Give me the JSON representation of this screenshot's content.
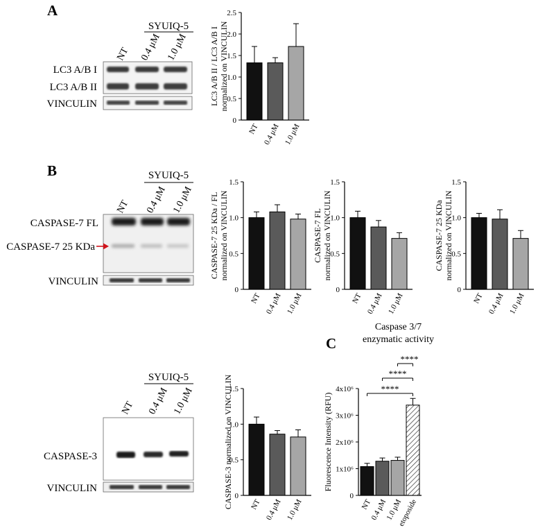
{
  "panels": {
    "A": "A",
    "B": "B",
    "C": "C"
  },
  "treatment_header": "SYUIQ-5",
  "lane_labels": [
    "NT",
    "0.4 μM",
    "1.0 μM"
  ],
  "blots": {
    "lc3": {
      "rows": [
        "LC3 A/B I",
        "LC3 A/B II"
      ],
      "loading": "VINCULIN"
    },
    "caspase7": {
      "rows": [
        "CASPASE-7 FL",
        "CASPASE-7 25 KDa"
      ],
      "loading": "VINCULIN"
    },
    "caspase3": {
      "rows": [
        "CASPASE-3"
      ],
      "loading": "VINCULIN"
    }
  },
  "colors": {
    "NT": "#111111",
    "0.4 μM": "#5a5a5a",
    "1.0 μM": "#a6a6a6",
    "etoposide": "#ffffff",
    "arrow": "#d0141c"
  },
  "chart_data": [
    {
      "id": "lc3-ratio",
      "type": "bar",
      "ylabel_lines": [
        "LC3 A/B II / LC3 A/B I",
        "normalized on VINCULIN"
      ],
      "categories": [
        "NT",
        "0.4 μM",
        "1.0 μM"
      ],
      "values": [
        1.33,
        1.33,
        1.71
      ],
      "errors": [
        0.38,
        0.12,
        0.53
      ],
      "ylim": [
        0,
        2.5
      ],
      "yticks": [
        "0",
        "0.5",
        "1.0",
        "1.5",
        "2.0",
        "2.5"
      ]
    },
    {
      "id": "casp7-25-fl",
      "type": "bar",
      "ylabel_lines": [
        "CASPASE-7 25 KDa / FL",
        "normalized on VINCULIN"
      ],
      "categories": [
        "NT",
        "0.4 μM",
        "1.0 μM"
      ],
      "values": [
        1.0,
        1.08,
        0.98
      ],
      "errors": [
        0.08,
        0.1,
        0.07
      ],
      "ylim": [
        0,
        1.5
      ],
      "yticks": [
        "0",
        "0.5",
        "1.0",
        "1.5"
      ]
    },
    {
      "id": "casp7-fl",
      "type": "bar",
      "ylabel_lines": [
        "CASPASE-7 FL",
        "normalized on VINCULIN"
      ],
      "categories": [
        "NT",
        "0.4 μM",
        "1.0 μM"
      ],
      "values": [
        1.0,
        0.87,
        0.71
      ],
      "errors": [
        0.09,
        0.09,
        0.08
      ],
      "ylim": [
        0,
        1.5
      ],
      "yticks": [
        "0",
        "0.5",
        "1.0",
        "1.5"
      ]
    },
    {
      "id": "casp7-25",
      "type": "bar",
      "ylabel_lines": [
        "CASPASE-7 25 KDa",
        "normalized on VINCULIN"
      ],
      "categories": [
        "NT",
        "0.4 μM",
        "1.0 μM"
      ],
      "values": [
        1.0,
        0.98,
        0.71
      ],
      "errors": [
        0.06,
        0.13,
        0.11
      ],
      "ylim": [
        0,
        1.5
      ],
      "yticks": [
        "0",
        "0.5",
        "1.0",
        "1.5"
      ]
    },
    {
      "id": "casp3",
      "type": "bar",
      "ylabel_lines": [
        "CASPASE-3 normalized on VINCULIN"
      ],
      "categories": [
        "NT",
        "0.4 μM",
        "1.0 μM"
      ],
      "values": [
        1.0,
        0.86,
        0.82
      ],
      "errors": [
        0.1,
        0.05,
        0.1
      ],
      "ylim": [
        0,
        1.5
      ],
      "yticks": [
        "0",
        "0.5",
        "1.0",
        "1.5"
      ]
    },
    {
      "id": "caspase-activity",
      "type": "bar",
      "title_lines": [
        "Caspase 3/7",
        "enzymatic activity"
      ],
      "ylabel_lines": [
        "Fluorescence Intensity (RFU)"
      ],
      "categories": [
        "NT",
        "0.4 μM",
        "1.0 μM",
        "etoposide"
      ],
      "values": [
        1080000,
        1280000,
        1310000,
        3380000
      ],
      "errors": [
        120000,
        120000,
        120000,
        250000
      ],
      "ylim": [
        0,
        4000000
      ],
      "yticks": [
        "0",
        "1x10⁶",
        "2x10⁶",
        "3x10⁶",
        "4x10⁶"
      ],
      "significance": [
        {
          "from": "NT",
          "to": "etoposide",
          "label": "****"
        },
        {
          "from": "0.4 μM",
          "to": "etoposide",
          "label": "****"
        },
        {
          "from": "1.0 μM",
          "to": "etoposide",
          "label": "****"
        }
      ]
    }
  ]
}
